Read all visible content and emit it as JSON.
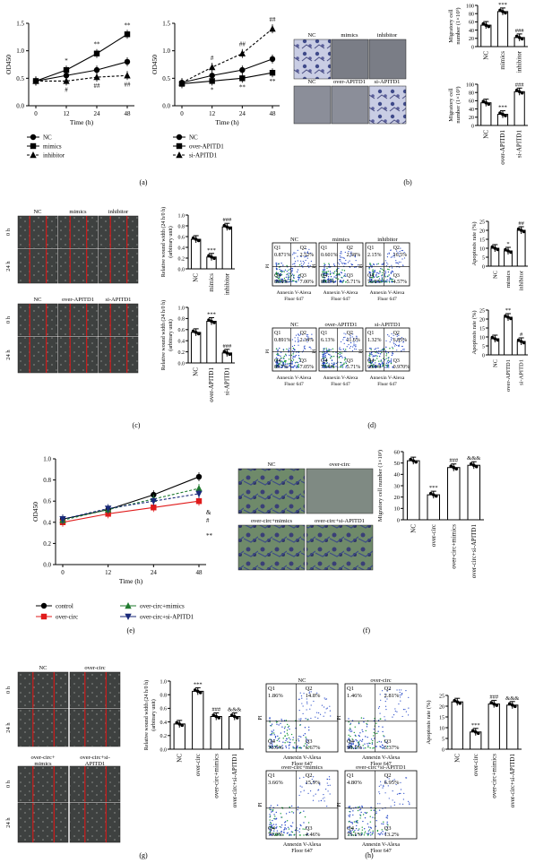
{
  "panel_labels": [
    "(a)",
    "(b)",
    "(c)",
    "(d)",
    "(e)",
    "(f)",
    "(g)",
    "(h)"
  ],
  "colors": {
    "control_black": "#000000",
    "over_circ_red": "#e01b1b",
    "over_circ_mimics_green": "#1f7a2e",
    "over_circ_si_blue": "#1a2a7a",
    "photo_purple": "#5a5f8c",
    "scratch_red": "#d11a1a",
    "scatter_blue": "#2a4cc8"
  },
  "panel_a": {
    "images_labels_left": {
      "NC": "NC",
      "mimics": "mimics",
      "inhibitor": "inhibitor"
    },
    "images_labels_right": {
      "NC": "NC",
      "over": "over-APITD1",
      "si": "si-APITD1"
    }
  },
  "panel_b": {
    "row1_labels": [
      "NC",
      "mimics",
      "inhibitor"
    ],
    "row2_labels": [
      "NC",
      "over-APITD1",
      "si-APITD1"
    ]
  },
  "panel_c": {
    "row1_labels": [
      "NC",
      "mimics",
      "inhibitor"
    ],
    "row2_labels": [
      "NC",
      "over-APITD1",
      "si-APITD1"
    ],
    "time_labels": [
      "0 h",
      "24 h"
    ]
  },
  "panel_d": {
    "row1": [
      {
        "title": "NC",
        "q1": "0.871%",
        "q2": "2.52%",
        "q4": "89.8%",
        "q3": "7.00%"
      },
      {
        "title": "mimics",
        "q1": "0.601%",
        "q2": "2.58%",
        "q4": "89.8%",
        "q3": "5.71%"
      },
      {
        "title": "inhibitor",
        "q1": "2.15%",
        "q2": "16.5%",
        "q4": "76.8%",
        "q3": "4.57%"
      }
    ],
    "row2": [
      {
        "title": "NC",
        "q1": "0.891%",
        "q2": "2.34%",
        "q4": "89.7%",
        "q3": "7.05%"
      },
      {
        "title": "over-APITD1",
        "q1": "6.13%",
        "q2": "11.6%",
        "q4": "73.4%",
        "q3": "5.71%"
      },
      {
        "title": "si-APITD1",
        "q1": "1.32%",
        "q2": "6.85%",
        "q4": "90.9%",
        "q3": "0.970%"
      }
    ],
    "quadrant_names": [
      "Q1",
      "Q2",
      "Q3",
      "Q4"
    ],
    "xaxis": [
      "Annexin V-Alexa",
      "Fluor 647"
    ],
    "yaxis": "PI",
    "ytick_labels": [
      "10⁴",
      "10³",
      "10²",
      "10¹",
      "10⁰"
    ]
  },
  "panel_f": {
    "photo_labels": [
      "NC",
      "over-circ",
      "over-circ+mimics",
      "over-circ+si-APITD1"
    ]
  },
  "panel_g": {
    "photo_labels": [
      "NC",
      "over-circ",
      "over-circ+mimics",
      "over-circ+si-APITD1"
    ],
    "time_labels": [
      "0 h",
      "24 h"
    ]
  },
  "panel_h": {
    "plots": [
      {
        "title": "NC",
        "q1": "1.86%",
        "q2": "14.8%",
        "q4": "76.6%",
        "q3": "6.67%"
      },
      {
        "title": "over-circ",
        "q1": "1.46%",
        "q2": "2.81%",
        "q4": "90.1%",
        "q3": "5.37%"
      },
      {
        "title": "over-circ+mimics",
        "q1": "3.66%",
        "q2": "15.9%",
        "q4": "76.0%",
        "q3": "4.46%"
      },
      {
        "title": "over-circ+si-APITD1",
        "q1": "4.80%",
        "q2": "6.95%",
        "q4": "75.1%",
        "q3": "13.2%"
      }
    ],
    "xaxis": [
      "Annexin V-Alexa",
      "Floor 647"
    ],
    "yaxis": "PI"
  },
  "chart_data": [
    {
      "id": "a_left",
      "type": "line",
      "ylabel": "OD450",
      "xlabel": "Time (h)",
      "x": [
        0,
        12,
        24,
        48
      ],
      "ylim": [
        0,
        1.5
      ],
      "yticks": [
        0.0,
        0.5,
        1.0,
        1.5
      ],
      "series": [
        {
          "name": "NC",
          "marker": "circle",
          "values": [
            0.45,
            0.55,
            0.65,
            0.8
          ]
        },
        {
          "name": "mimics",
          "marker": "square",
          "values": [
            0.45,
            0.65,
            0.95,
            1.3
          ]
        },
        {
          "name": "inhibitor",
          "marker": "triangle",
          "values": [
            0.45,
            0.45,
            0.52,
            0.55
          ]
        }
      ],
      "annotations": [
        {
          "x": 12,
          "text": "*",
          "pos": "above"
        },
        {
          "x": 24,
          "text": "**",
          "pos": "above"
        },
        {
          "x": 48,
          "text": "**",
          "pos": "above"
        },
        {
          "x": 12,
          "text": "#",
          "pos": "below"
        },
        {
          "x": 24,
          "text": "##",
          "pos": "below"
        },
        {
          "x": 48,
          "text": "##",
          "pos": "below"
        }
      ]
    },
    {
      "id": "a_right",
      "type": "line",
      "ylabel": "OD450",
      "xlabel": "Time (h)",
      "x": [
        0,
        12,
        24,
        48
      ],
      "ylim": [
        0,
        1.5
      ],
      "yticks": [
        0.0,
        0.5,
        1.0,
        1.5
      ],
      "series": [
        {
          "name": "NC",
          "marker": "circle",
          "values": [
            0.42,
            0.55,
            0.65,
            0.85
          ]
        },
        {
          "name": "over-APITD1",
          "marker": "square",
          "values": [
            0.4,
            0.45,
            0.5,
            0.6
          ]
        },
        {
          "name": "si-APITD1",
          "marker": "triangle",
          "values": [
            0.42,
            0.7,
            0.95,
            1.4
          ]
        }
      ],
      "annotations": [
        {
          "x": 12,
          "text": "#",
          "pos": "above"
        },
        {
          "x": 24,
          "text": "##",
          "pos": "above"
        },
        {
          "x": 48,
          "text": "##",
          "pos": "above"
        },
        {
          "x": 12,
          "text": "*",
          "pos": "below"
        },
        {
          "x": 24,
          "text": "**",
          "pos": "below"
        },
        {
          "x": 48,
          "text": "**",
          "pos": "below"
        }
      ]
    },
    {
      "id": "b_top",
      "type": "bar",
      "ylabel": "Migratory cell number (1×10³)",
      "categories": [
        "NC",
        "mimics",
        "inhibitor"
      ],
      "values": [
        52,
        85,
        22
      ],
      "ylim": [
        0,
        100
      ],
      "yticks": [
        0,
        20,
        40,
        60,
        80,
        100
      ],
      "sig": [
        "",
        "***",
        "###"
      ]
    },
    {
      "id": "b_bottom",
      "type": "bar",
      "ylabel": "Migratory cell number (1×10³)",
      "categories": [
        "NC",
        "over-APITD1",
        "si-APITD1"
      ],
      "values": [
        55,
        27,
        82
      ],
      "ylim": [
        0,
        100
      ],
      "yticks": [
        0,
        20,
        40,
        60,
        80,
        100
      ],
      "sig": [
        "",
        "***",
        "###"
      ]
    },
    {
      "id": "c_top",
      "type": "bar",
      "ylabel": "Relative wound width (24 h/0 h) (arbitrary unit)",
      "categories": [
        "NC",
        "mimics",
        "inhibitor"
      ],
      "values": [
        0.55,
        0.22,
        0.78
      ],
      "ylim": [
        0,
        1.0
      ],
      "yticks": [
        0.0,
        0.2,
        0.4,
        0.6,
        0.8,
        1.0
      ],
      "sig": [
        "",
        "***",
        "###"
      ]
    },
    {
      "id": "c_bottom",
      "type": "bar",
      "ylabel": "Relative wound width (24 h/0 h) (arbitrary unit)",
      "categories": [
        "NC",
        "over-APITD1",
        "si-APITD1"
      ],
      "values": [
        0.55,
        0.75,
        0.18
      ],
      "ylim": [
        0,
        1.0
      ],
      "yticks": [
        0.0,
        0.2,
        0.4,
        0.6,
        0.8,
        1.0
      ],
      "sig": [
        "",
        "***",
        "###"
      ]
    },
    {
      "id": "d_top",
      "type": "bar",
      "ylabel": "Apoptosis rate (%)",
      "categories": [
        "NC",
        "mimics",
        "inhibitor"
      ],
      "values": [
        10,
        8.5,
        20
      ],
      "ylim": [
        0,
        25
      ],
      "yticks": [
        0,
        5,
        10,
        15,
        20,
        25
      ],
      "sig": [
        "",
        "*",
        "##"
      ]
    },
    {
      "id": "d_bottom",
      "type": "bar",
      "ylabel": "Apoptosis rate (%)",
      "categories": [
        "NC",
        "over-APITD1",
        "si-APITD1"
      ],
      "values": [
        9,
        21,
        7.5
      ],
      "ylim": [
        0,
        25
      ],
      "yticks": [
        0,
        5,
        10,
        15,
        20,
        25
      ],
      "sig": [
        "",
        "**",
        "#"
      ]
    },
    {
      "id": "e",
      "type": "line",
      "ylabel": "OD450",
      "xlabel": "Time (h)",
      "x": [
        0,
        12,
        24,
        48
      ],
      "ylim": [
        0,
        1.0
      ],
      "yticks": [
        0.0,
        0.2,
        0.4,
        0.6,
        0.8,
        1.0
      ],
      "series": [
        {
          "name": "control",
          "color": "#000000",
          "marker": "circle",
          "values": [
            0.43,
            0.52,
            0.66,
            0.83
          ]
        },
        {
          "name": "over-circ",
          "color": "#e01b1b",
          "marker": "square",
          "values": [
            0.4,
            0.48,
            0.54,
            0.6
          ]
        },
        {
          "name": "over-circ+mimics",
          "color": "#1f7a2e",
          "marker": "triangle",
          "values": [
            0.42,
            0.52,
            0.62,
            0.72
          ]
        },
        {
          "name": "over-circ+si-APITD1",
          "color": "#1a2a7a",
          "marker": "triangle-down",
          "values": [
            0.43,
            0.53,
            0.6,
            0.67
          ]
        }
      ],
      "annotations": [
        {
          "x": 48,
          "text": "&"
        },
        {
          "x": 48,
          "text": "#"
        },
        {
          "x": 48,
          "text": "**"
        }
      ]
    },
    {
      "id": "f",
      "type": "bar",
      "ylabel": "Migratory cell number (1×10³)",
      "categories": [
        "NC",
        "over-circ",
        "over-circ+mimics",
        "over-circ+si-APITD1"
      ],
      "values": [
        52,
        22,
        46,
        48
      ],
      "ylim": [
        0,
        60
      ],
      "yticks": [
        0,
        10,
        20,
        30,
        40,
        50,
        60
      ],
      "sig": [
        "",
        "***",
        "###",
        "&&&"
      ]
    },
    {
      "id": "g",
      "type": "bar",
      "ylabel": "Relative wound width (24 h/0 h) (arbitrary unit)",
      "categories": [
        "NC",
        "over-circ",
        "over-circ+mimics",
        "over-circ+si-APITD1"
      ],
      "values": [
        0.37,
        0.85,
        0.48,
        0.48
      ],
      "ylim": [
        0,
        1.0
      ],
      "yticks": [
        0.0,
        0.2,
        0.4,
        0.6,
        0.8,
        1.0
      ],
      "sig": [
        "",
        "***",
        "###",
        "&&&"
      ]
    },
    {
      "id": "h",
      "type": "bar",
      "ylabel": "Apoptosis rate (%)",
      "categories": [
        "NC",
        "over-circ",
        "over-circ+mimics",
        "over-circ+si-APITD1"
      ],
      "values": [
        22,
        8,
        21,
        20.5
      ],
      "ylim": [
        0,
        25
      ],
      "yticks": [
        0,
        5,
        10,
        15,
        20,
        25
      ],
      "sig": [
        "",
        "***",
        "###",
        "&&&"
      ]
    }
  ]
}
